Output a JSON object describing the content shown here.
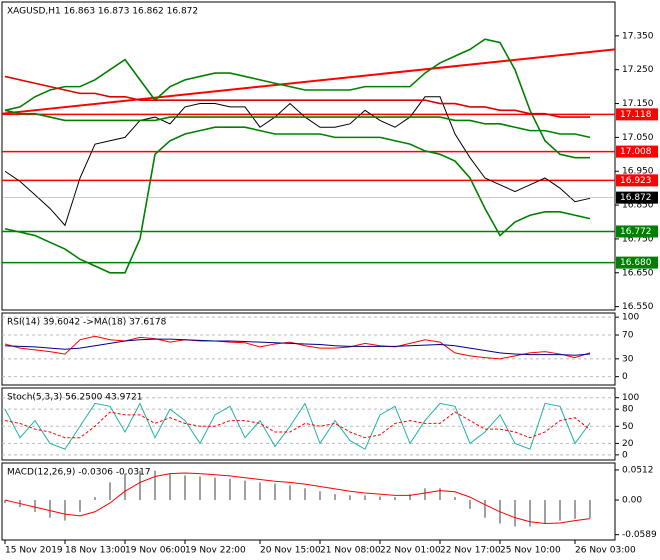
{
  "chart_data": [
    {
      "type": "line",
      "title": "XAGUSD,H1  16.863 16.873 16.862 16.872",
      "ylim": [
        16.54,
        17.45
      ],
      "yticks": [
        {
          "value": 16.55,
          "label": "16.550"
        },
        {
          "value": 16.65,
          "label": "16.650"
        },
        {
          "value": 16.75,
          "label": "16.750"
        },
        {
          "value": 16.85,
          "label": "16.850"
        },
        {
          "value": 16.95,
          "label": "16.950"
        },
        {
          "value": 17.05,
          "label": "17.050"
        },
        {
          "value": 17.15,
          "label": "17.150"
        },
        {
          "value": 17.25,
          "label": "17.250"
        },
        {
          "value": 17.35,
          "label": "17.350"
        }
      ],
      "series": [
        {
          "color": "#000000",
          "values": [
            16.95,
            16.92,
            16.88,
            16.84,
            16.79,
            16.93,
            17.03,
            17.04,
            17.05,
            17.1,
            17.11,
            17.09,
            17.14,
            17.15,
            17.15,
            17.14,
            17.14,
            17.08,
            17.11,
            17.15,
            17.11,
            17.08,
            17.08,
            17.09,
            17.13,
            17.1,
            17.08,
            17.11,
            17.17,
            17.17,
            17.06,
            16.99,
            16.93,
            16.91,
            16.89,
            16.91,
            16.93,
            16.9,
            16.86,
            16.87
          ]
        },
        {
          "color": "#008000",
          "values": [
            17.13,
            17.14,
            17.17,
            17.19,
            17.2,
            17.2,
            17.22,
            17.25,
            17.28,
            17.22,
            17.16,
            17.2,
            17.22,
            17.23,
            17.24,
            17.24,
            17.23,
            17.22,
            17.21,
            17.2,
            17.19,
            17.19,
            17.19,
            17.19,
            17.2,
            17.2,
            17.2,
            17.2,
            17.24,
            17.27,
            17.29,
            17.31,
            17.34,
            17.33,
            17.25,
            17.13,
            17.04,
            17.0,
            16.99,
            16.99
          ]
        },
        {
          "color": "#008000",
          "values": [
            16.78,
            16.77,
            16.76,
            16.74,
            16.72,
            16.69,
            16.67,
            16.65,
            16.65,
            16.75,
            17.0,
            17.04,
            17.06,
            17.07,
            17.08,
            17.08,
            17.08,
            17.07,
            17.06,
            17.06,
            17.06,
            17.06,
            17.05,
            17.05,
            17.05,
            17.05,
            17.04,
            17.03,
            17.01,
            17.0,
            16.98,
            16.93,
            16.84,
            16.76,
            16.8,
            16.82,
            16.83,
            16.83,
            16.82,
            16.81
          ]
        },
        {
          "color": "#dd0000",
          "values": [
            17.23,
            17.22,
            17.21,
            17.2,
            17.19,
            17.18,
            17.18,
            17.17,
            17.17,
            17.16,
            17.16,
            17.16,
            17.16,
            17.16,
            17.16,
            17.16,
            17.16,
            17.16,
            17.16,
            17.16,
            17.16,
            17.16,
            17.16,
            17.16,
            17.16,
            17.16,
            17.16,
            17.16,
            17.16,
            17.15,
            17.15,
            17.14,
            17.14,
            17.13,
            17.13,
            17.12,
            17.12,
            17.11,
            17.11,
            17.11
          ]
        },
        {
          "color": "#008000",
          "values": [
            17.13,
            17.12,
            17.12,
            17.11,
            17.1,
            17.1,
            17.1,
            17.1,
            17.1,
            17.1,
            17.1,
            17.11,
            17.11,
            17.11,
            17.11,
            17.11,
            17.11,
            17.11,
            17.11,
            17.11,
            17.11,
            17.11,
            17.11,
            17.11,
            17.11,
            17.11,
            17.11,
            17.11,
            17.11,
            17.11,
            17.1,
            17.1,
            17.09,
            17.09,
            17.08,
            17.07,
            17.07,
            17.06,
            17.06,
            17.05
          ]
        }
      ],
      "trendline": {
        "color": "#ff0000",
        "values": [
          17.12,
          17.31
        ]
      },
      "levels": [
        {
          "value": 17.118,
          "label": "17.118",
          "color": "#ff0000"
        },
        {
          "value": 17.008,
          "label": "17.008",
          "color": "#ff0000"
        },
        {
          "value": 16.923,
          "label": "16.923",
          "color": "#ff0000"
        },
        {
          "value": 16.772,
          "label": "16.772",
          "color": "#008000"
        },
        {
          "value": 16.68,
          "label": "16.680",
          "color": "#008000"
        }
      ],
      "last_price": 16.872
    },
    {
      "type": "line",
      "title": "RSI(14) 39.6042 ->MA(18) 37.6178",
      "ylim": [
        -14,
        107
      ],
      "yticks": [
        0,
        30,
        70,
        100
      ],
      "grid": true,
      "series": [
        {
          "color": "#ff0000",
          "values": [
            55,
            48,
            45,
            42,
            38,
            62,
            68,
            62,
            60,
            66,
            64,
            58,
            62,
            60,
            60,
            58,
            57,
            50,
            55,
            58,
            52,
            48,
            48,
            50,
            56,
            52,
            50,
            56,
            62,
            58,
            40,
            35,
            32,
            30,
            35,
            40,
            42,
            38,
            32,
            40
          ]
        },
        {
          "color": "#00008b",
          "values": [
            52,
            51,
            50,
            48,
            46,
            48,
            52,
            56,
            60,
            62,
            63,
            63,
            62,
            61,
            60,
            60,
            59,
            58,
            57,
            56,
            55,
            54,
            52,
            51,
            51,
            51,
            51,
            52,
            53,
            54,
            52,
            48,
            44,
            40,
            38,
            37,
            37,
            37,
            36,
            38
          ]
        }
      ]
    },
    {
      "type": "line",
      "title": "Stoch(5,3,3) 56.2500 43.9721",
      "ylim": [
        -9,
        117
      ],
      "yticks": [
        0,
        20,
        50,
        80,
        100
      ],
      "grid": true,
      "series": [
        {
          "color": "#20b2aa",
          "values": [
            80,
            30,
            60,
            20,
            10,
            50,
            90,
            85,
            40,
            90,
            30,
            80,
            60,
            20,
            70,
            85,
            30,
            60,
            15,
            50,
            90,
            20,
            60,
            25,
            10,
            70,
            85,
            20,
            60,
            90,
            85,
            20,
            40,
            70,
            20,
            10,
            90,
            85,
            20,
            56
          ]
        },
        {
          "color": "#ff0000",
          "dashed": true,
          "values": [
            60,
            55,
            45,
            40,
            30,
            30,
            50,
            75,
            70,
            70,
            55,
            65,
            55,
            50,
            50,
            60,
            60,
            55,
            40,
            40,
            55,
            50,
            55,
            40,
            30,
            35,
            55,
            60,
            55,
            55,
            75,
            60,
            45,
            45,
            40,
            30,
            40,
            60,
            65,
            44
          ]
        }
      ]
    },
    {
      "type": "macd",
      "title": "MACD(12,26,9) -0.0306 -0.0317",
      "ylim": [
        -0.068,
        0.063
      ],
      "yticks": [
        {
          "value": -0.0589,
          "label": "-0.0589"
        },
        {
          "value": 0,
          "label": "0.00"
        },
        {
          "value": 0.0512,
          "label": "0.0512"
        }
      ],
      "categories": [
        "15 Nov 2019",
        null,
        null,
        null,
        "18 Nov 13:00",
        null,
        null,
        null,
        "19 Nov 06:00",
        null,
        null,
        null,
        "19 Nov 22:00",
        null,
        null,
        null,
        null,
        "20 Nov 15:00",
        null,
        null,
        null,
        "21 Nov 08:00",
        null,
        null,
        null,
        "22 Nov 01:00",
        null,
        null,
        null,
        "22 Nov 17:00",
        null,
        null,
        null,
        "25 Nov 10:00",
        null,
        null,
        null,
        null,
        "26 Nov 03:00",
        null
      ],
      "series": [
        {
          "color": "#a0a0a0",
          "values": [
            -0.005,
            -0.012,
            -0.02,
            -0.03,
            -0.035,
            -0.02,
            0.005,
            0.03,
            0.045,
            0.05,
            0.05,
            0.045,
            0.042,
            0.04,
            0.038,
            0.036,
            0.033,
            0.03,
            0.028,
            0.025,
            0.02,
            0.015,
            0.01,
            0.008,
            0.008,
            0.006,
            0.005,
            0.01,
            0.02,
            0.02,
            0.005,
            -0.015,
            -0.03,
            -0.04,
            -0.045,
            -0.045,
            -0.04,
            -0.035,
            -0.032,
            -0.0306
          ]
        },
        {
          "color": "#ff0000",
          "values": [
            0,
            -0.006,
            -0.012,
            -0.018,
            -0.024,
            -0.027,
            -0.02,
            -0.005,
            0.015,
            0.03,
            0.04,
            0.045,
            0.046,
            0.045,
            0.043,
            0.041,
            0.038,
            0.035,
            0.032,
            0.03,
            0.027,
            0.023,
            0.019,
            0.015,
            0.012,
            0.01,
            0.008,
            0.008,
            0.012,
            0.016,
            0.014,
            0.005,
            -0.008,
            -0.02,
            -0.03,
            -0.037,
            -0.04,
            -0.039,
            -0.035,
            -0.0317
          ]
        }
      ]
    }
  ]
}
